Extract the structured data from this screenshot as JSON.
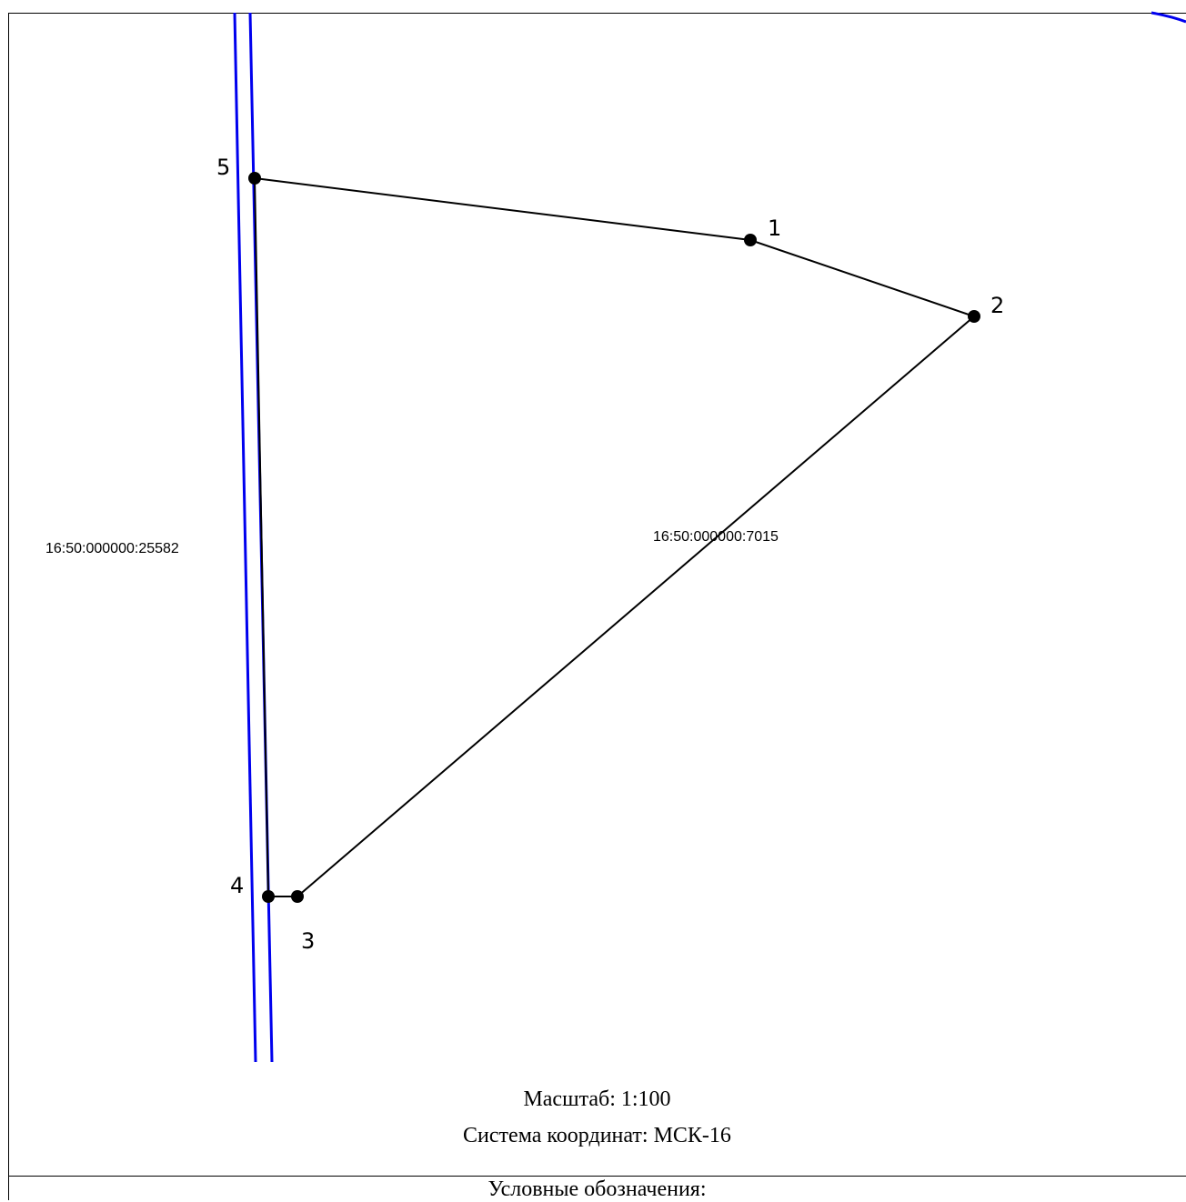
{
  "map": {
    "points": [
      {
        "id": "1",
        "label": "1"
      },
      {
        "id": "2",
        "label": "2"
      },
      {
        "id": "3",
        "label": "3"
      },
      {
        "id": "4",
        "label": "4"
      },
      {
        "id": "5",
        "label": "5"
      }
    ],
    "parcels": [
      {
        "label": "16:50:000000:7015"
      },
      {
        "label": "16:50:000000:25582"
      }
    ],
    "colors": {
      "boundary": "#000000",
      "adjacent": "#0000ee"
    }
  },
  "caption": {
    "scale": "Масштаб: 1:100",
    "crs": "Система координат: МСК-16"
  },
  "legend": {
    "title": "Условные обозначения:"
  }
}
